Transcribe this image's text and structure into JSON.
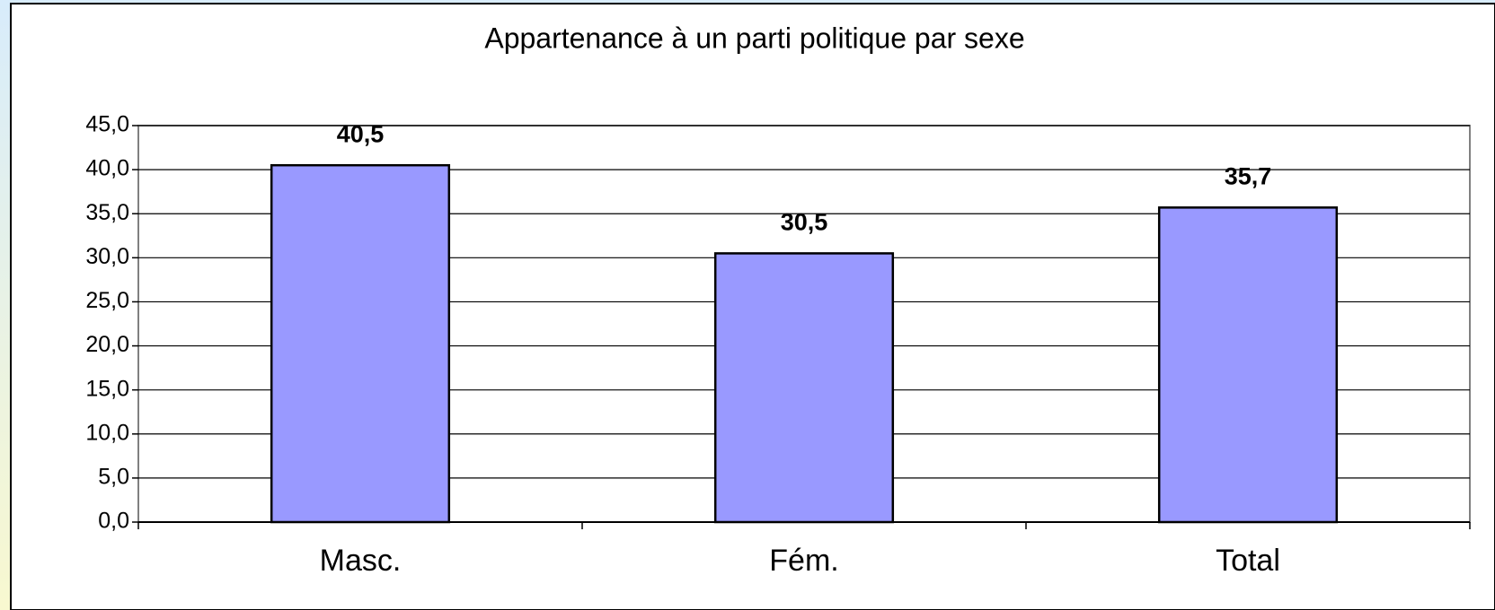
{
  "chart_data": {
    "type": "bar",
    "title": "Appartenance à un parti politique par sexe",
    "categories": [
      "Masc.",
      "Fém.",
      "Total"
    ],
    "values": [
      40.5,
      30.5,
      35.7
    ],
    "value_labels": [
      "40,5",
      "30,5",
      "35,7"
    ],
    "color": "#9999ff",
    "ylim": [
      0,
      45
    ],
    "yticks": [
      {
        "value": 0,
        "label": "0,0"
      },
      {
        "value": 5,
        "label": "5,0"
      },
      {
        "value": 10,
        "label": "10,0"
      },
      {
        "value": 15,
        "label": "15,0"
      },
      {
        "value": 20,
        "label": "20,0"
      },
      {
        "value": 25,
        "label": "25,0"
      },
      {
        "value": 30,
        "label": "30,0"
      },
      {
        "value": 35,
        "label": "35,0"
      },
      {
        "value": 40,
        "label": "40,0"
      },
      {
        "value": 45,
        "label": "45,0"
      }
    ],
    "grid": true
  }
}
